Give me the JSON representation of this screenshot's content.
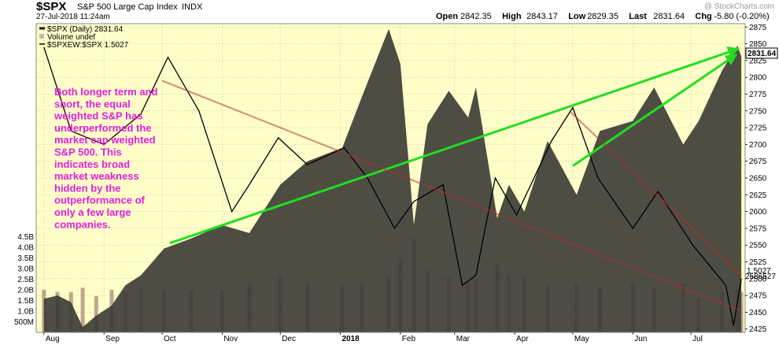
{
  "header": {
    "symbol": "$SPX",
    "name": "S&P 500 Large Cap Index",
    "exchange": "INDX",
    "timestamp": "27-Jul-2018 11:24am",
    "watermark": "@ StockCharts.com",
    "quote": [
      {
        "label": "Open",
        "value": "2842.35"
      },
      {
        "label": "High",
        "value": "2843.17"
      },
      {
        "label": "Low",
        "value": "2829.35"
      },
      {
        "label": "Last",
        "value": "2831.64"
      },
      {
        "label": "Chg",
        "value": "-5.80 (-0.20%)"
      }
    ]
  },
  "legend": [
    {
      "text": "$SPX (Daily) 2831.64",
      "color": "#1a1a1a"
    },
    {
      "text": "Volume undef",
      "color": "#999999"
    },
    {
      "text": "$SPXEW:$SPX 1.5027",
      "color": "#000000"
    }
  ],
  "annotation": [
    "Both longer term and",
    "short, the equal",
    "weighted S&P has",
    "underperformed the",
    "market cap weighted",
    "S&P 500. This",
    "indicates broad",
    "market weakness",
    "hidden by the",
    "outperformance of",
    "only a few large",
    "companies."
  ],
  "colors": {
    "plot_background": "#fffdc8",
    "price_area": "#3a3a34",
    "ratio_line": "#000000",
    "trend_up": "#22dd22",
    "trend_down": "#b03030",
    "annotation": "#e01ee0",
    "volume_bar": "#8a6060"
  },
  "chart_data": {
    "type": "area",
    "title": "$SPX S&P 500 Large Cap Index",
    "x_labels": [
      "Aug",
      "Sep",
      "Oct",
      "Nov",
      "Dec",
      "2018",
      "Feb",
      "Mar",
      "Apr",
      "May",
      "Jun",
      "Jul"
    ],
    "x_label_dates": [
      "2017-08-01",
      "2017-09-01",
      "2017-10-01",
      "2017-11-01",
      "2017-12-01",
      "2018-01-01",
      "2018-02-01",
      "2018-03-01",
      "2018-04-01",
      "2018-05-01",
      "2018-06-01",
      "2018-07-01"
    ],
    "price_ticks": [
      2425,
      2450,
      2475,
      2500,
      2525,
      2550,
      2575,
      2600,
      2625,
      2650,
      2675,
      2700,
      2725,
      2750,
      2775,
      2800,
      2825,
      2850,
      2875
    ],
    "price_range": [
      2420,
      2880
    ],
    "volume_ticks": [
      "500M",
      "1.0B",
      "1.5B",
      "2.0B",
      "2.5B",
      "3.0B",
      "3.5B",
      "4.0B",
      "4.5B"
    ],
    "volume_tick_values": [
      0.5,
      1.0,
      1.5,
      2.0,
      2.5,
      3.0,
      3.5,
      4.0,
      4.5
    ],
    "volume_range": [
      0,
      5.0
    ],
    "last_price_label": "2831.64",
    "ratio_label": "1.5027",
    "overlay_label": "2586527",
    "series": [
      {
        "name": "$SPX (Daily)",
        "kind": "area",
        "points": [
          [
            "2017-08-01",
            2470
          ],
          [
            "2017-08-08",
            2475
          ],
          [
            "2017-08-15",
            2465
          ],
          [
            "2017-08-21",
            2428
          ],
          [
            "2017-08-28",
            2445
          ],
          [
            "2017-09-05",
            2460
          ],
          [
            "2017-09-12",
            2490
          ],
          [
            "2017-09-20",
            2505
          ],
          [
            "2017-10-02",
            2545
          ],
          [
            "2017-10-16",
            2560
          ],
          [
            "2017-11-01",
            2580
          ],
          [
            "2017-11-15",
            2568
          ],
          [
            "2017-12-01",
            2640
          ],
          [
            "2017-12-15",
            2675
          ],
          [
            "2018-01-02",
            2695
          ],
          [
            "2018-01-12",
            2770
          ],
          [
            "2018-01-26",
            2872
          ],
          [
            "2018-02-01",
            2820
          ],
          [
            "2018-02-08",
            2580
          ],
          [
            "2018-02-15",
            2730
          ],
          [
            "2018-02-26",
            2780
          ],
          [
            "2018-03-08",
            2740
          ],
          [
            "2018-03-12",
            2785
          ],
          [
            "2018-03-23",
            2590
          ],
          [
            "2018-03-29",
            2640
          ],
          [
            "2018-04-06",
            2600
          ],
          [
            "2018-04-18",
            2705
          ],
          [
            "2018-05-03",
            2625
          ],
          [
            "2018-05-15",
            2720
          ],
          [
            "2018-06-01",
            2735
          ],
          [
            "2018-06-12",
            2785
          ],
          [
            "2018-06-27",
            2700
          ],
          [
            "2018-07-05",
            2735
          ],
          [
            "2018-07-17",
            2810
          ],
          [
            "2018-07-25",
            2847
          ],
          [
            "2018-07-27",
            2831
          ]
        ]
      },
      {
        "name": "$SPXEW:$SPX",
        "kind": "line",
        "points": [
          [
            "2017-08-01",
            2845
          ],
          [
            "2017-08-15",
            2720
          ],
          [
            "2017-09-01",
            2700
          ],
          [
            "2017-09-20",
            2745
          ],
          [
            "2017-10-04",
            2830
          ],
          [
            "2017-10-20",
            2750
          ],
          [
            "2017-11-06",
            2600
          ],
          [
            "2017-11-15",
            2640
          ],
          [
            "2017-11-30",
            2710
          ],
          [
            "2017-12-15",
            2670
          ],
          [
            "2018-01-03",
            2695
          ],
          [
            "2018-01-15",
            2650
          ],
          [
            "2018-01-29",
            2575
          ],
          [
            "2018-02-08",
            2615
          ],
          [
            "2018-02-23",
            2640
          ],
          [
            "2018-03-05",
            2490
          ],
          [
            "2018-03-12",
            2505
          ],
          [
            "2018-03-22",
            2650
          ],
          [
            "2018-04-02",
            2595
          ],
          [
            "2018-04-20",
            2705
          ],
          [
            "2018-05-01",
            2755
          ],
          [
            "2018-05-14",
            2650
          ],
          [
            "2018-06-01",
            2575
          ],
          [
            "2018-06-14",
            2630
          ],
          [
            "2018-07-02",
            2550
          ],
          [
            "2018-07-19",
            2490
          ],
          [
            "2018-07-23",
            2430
          ],
          [
            "2018-07-27",
            2500
          ]
        ]
      },
      {
        "name": "Volume",
        "kind": "bar",
        "points": [
          [
            "2017-08-01",
            2.0
          ],
          [
            "2017-08-08",
            1.9
          ],
          [
            "2017-08-15",
            1.9
          ],
          [
            "2017-08-21",
            2.1
          ],
          [
            "2017-08-28",
            1.7
          ],
          [
            "2017-09-05",
            2.0
          ],
          [
            "2017-09-12",
            1.9
          ],
          [
            "2017-09-20",
            2.1
          ],
          [
            "2017-10-02",
            1.9
          ],
          [
            "2017-10-16",
            2.0
          ],
          [
            "2017-11-01",
            2.0
          ],
          [
            "2017-11-15",
            2.3
          ],
          [
            "2017-12-01",
            2.6
          ],
          [
            "2017-12-15",
            2.3
          ],
          [
            "2018-01-02",
            2.2
          ],
          [
            "2018-01-12",
            2.4
          ],
          [
            "2018-01-26",
            2.6
          ],
          [
            "2018-02-01",
            3.5
          ],
          [
            "2018-02-08",
            4.4
          ],
          [
            "2018-02-15",
            2.9
          ],
          [
            "2018-02-26",
            2.6
          ],
          [
            "2018-03-08",
            2.4
          ],
          [
            "2018-03-12",
            2.5
          ],
          [
            "2018-03-23",
            3.2
          ],
          [
            "2018-03-29",
            2.7
          ],
          [
            "2018-04-06",
            2.6
          ],
          [
            "2018-04-18",
            2.2
          ],
          [
            "2018-05-03",
            2.3
          ],
          [
            "2018-05-15",
            2.1
          ],
          [
            "2018-06-01",
            2.3
          ],
          [
            "2018-06-12",
            2.1
          ],
          [
            "2018-06-27",
            2.3
          ],
          [
            "2018-07-05",
            1.6
          ],
          [
            "2018-07-17",
            1.9
          ],
          [
            "2018-07-25",
            2.0
          ],
          [
            "2018-07-27",
            1.9
          ]
        ]
      }
    ],
    "trendlines": [
      {
        "color": "green",
        "from": [
          "2017-10-05",
          2553
        ],
        "to": [
          "2018-07-25",
          2842
        ]
      },
      {
        "color": "green",
        "from": [
          "2018-05-01",
          2668
        ],
        "to": [
          "2018-07-24",
          2833
        ]
      },
      {
        "color": "red",
        "from": [
          "2017-10-01",
          2795
        ],
        "to": [
          "2018-07-27",
          2452
        ]
      },
      {
        "color": "red",
        "from": [
          "2018-04-30",
          2748
        ],
        "to": [
          "2018-07-27",
          2505
        ]
      }
    ],
    "grid": true,
    "legend_position": "top-left"
  }
}
